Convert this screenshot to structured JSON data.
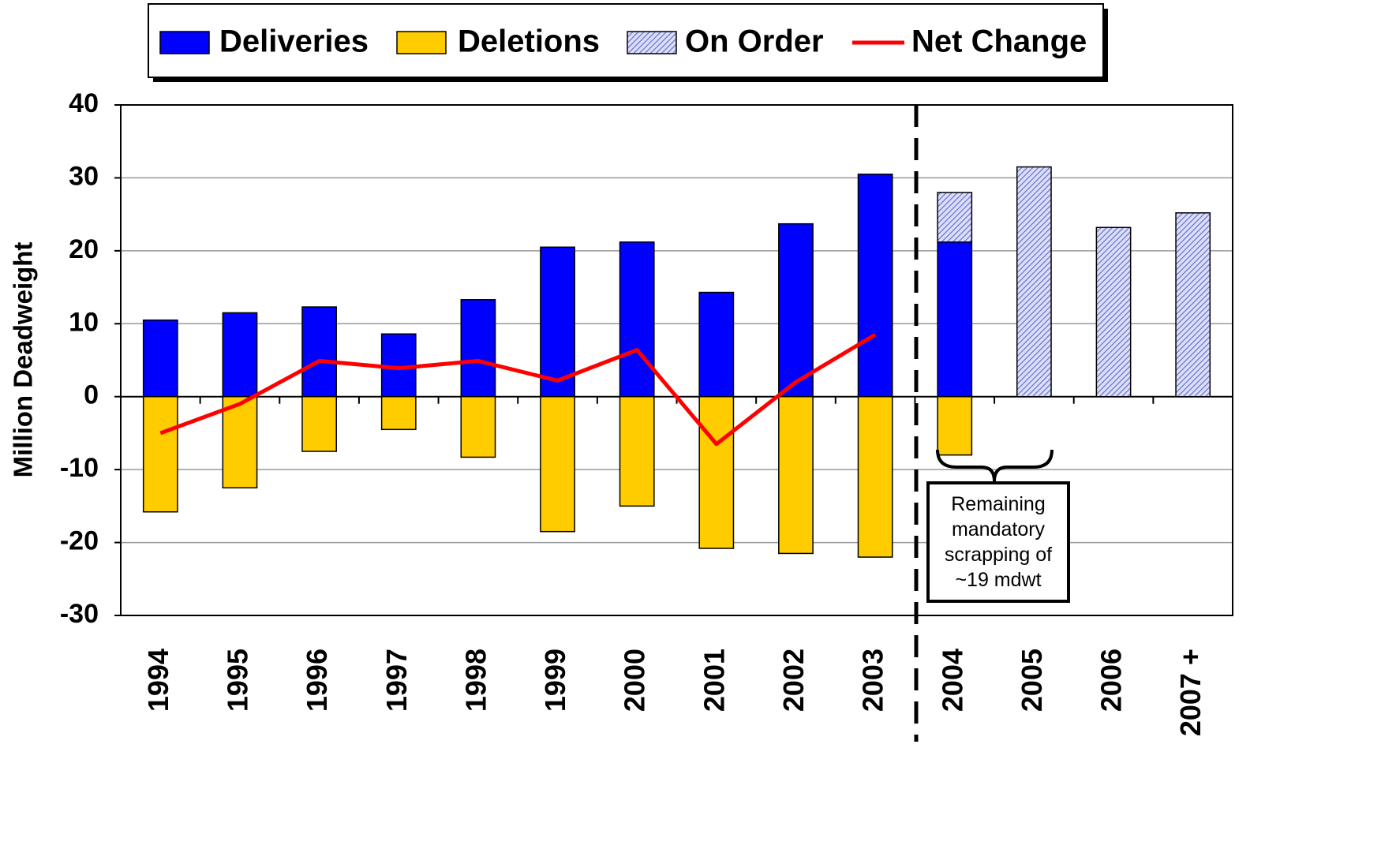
{
  "chart_data": {
    "type": "bar",
    "y_label": "Million Deadweight",
    "categories": [
      "1994",
      "1995",
      "1996",
      "1997",
      "1998",
      "1999",
      "2000",
      "2001",
      "2002",
      "2003",
      "2004",
      "2005",
      "2006",
      "2007 +"
    ],
    "series": [
      {
        "name": "Deliveries",
        "color": "#0000ff",
        "values": [
          10.5,
          11.5,
          12.3,
          8.6,
          13.3,
          20.5,
          21.2,
          14.3,
          23.7,
          30.5,
          21.2,
          null,
          null,
          null
        ]
      },
      {
        "name": "Deletions",
        "color": "#ffcc00",
        "values": [
          -15.8,
          -12.5,
          -7.5,
          -4.5,
          -8.3,
          -18.5,
          -15,
          -20.8,
          -21.5,
          -22,
          -8,
          null,
          null,
          null
        ]
      },
      {
        "name": "On Order",
        "color": "#9fa6e8",
        "hatched": true,
        "values": [
          null,
          null,
          null,
          null,
          null,
          null,
          null,
          null,
          null,
          null,
          6.8,
          31.5,
          23.2,
          25.2
        ]
      },
      {
        "name": "Net Change",
        "color": "#ff0000",
        "type": "line",
        "values": [
          -5,
          -1,
          4.9,
          3.9,
          4.9,
          2.2,
          6.4,
          -6.5,
          2,
          8.5,
          null,
          null,
          null,
          null
        ]
      }
    ],
    "ylim": [
      -30,
      40
    ],
    "yticks": [
      -30,
      -20,
      -10,
      0,
      10,
      20,
      30,
      40
    ],
    "grid": true,
    "annotation": "Remaining mandatory scrapping of ~19 mdwt",
    "legend": "top"
  }
}
